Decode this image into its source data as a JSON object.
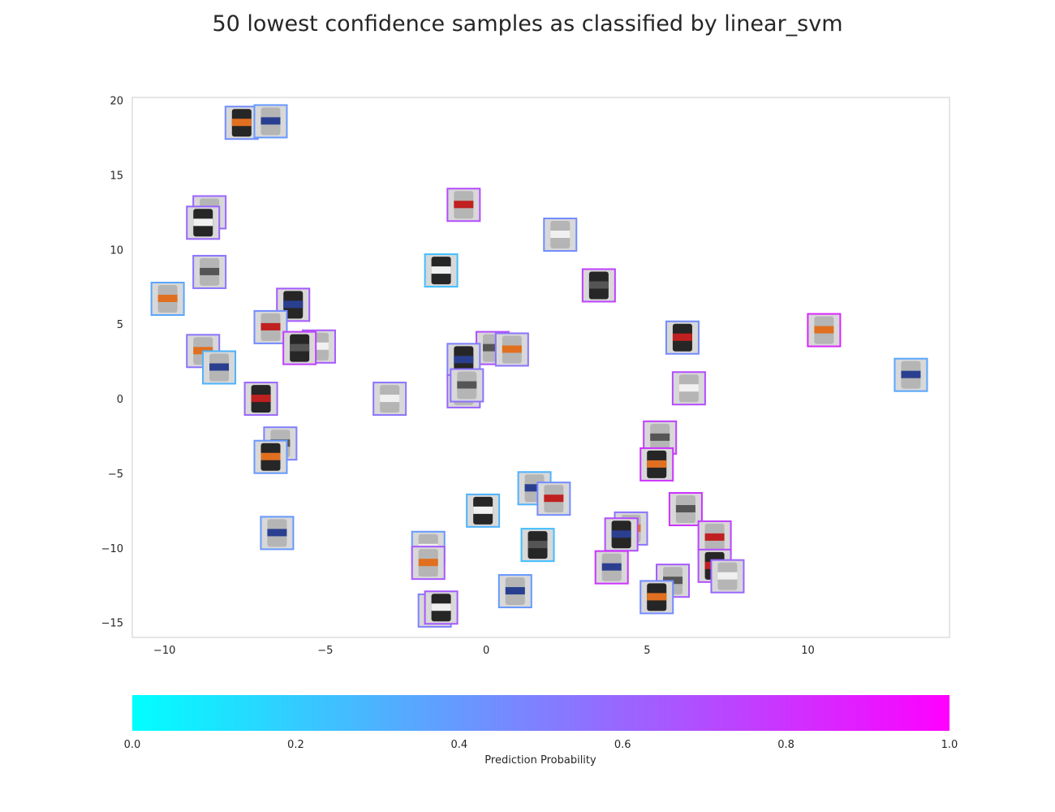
{
  "chart_data": {
    "type": "scatter",
    "title": "50 lowest confidence samples as classified by linear_svm",
    "xlabel": "",
    "ylabel": "",
    "xlim": [
      -11,
      14.4
    ],
    "ylim": [
      -16,
      20.2
    ],
    "x_ticks": [
      -10,
      -5,
      0,
      5,
      10
    ],
    "y_ticks": [
      -15,
      -10,
      -5,
      0,
      5,
      10,
      15,
      20
    ],
    "grid": false,
    "marker": "image thumbnail with colored border",
    "points": [
      {
        "x": -7.6,
        "y": 18.5,
        "p": 0.45
      },
      {
        "x": -6.7,
        "y": 18.6,
        "p": 0.4
      },
      {
        "x": -8.6,
        "y": 12.5,
        "p": 0.6
      },
      {
        "x": -8.8,
        "y": 11.8,
        "p": 0.6
      },
      {
        "x": -8.6,
        "y": 8.5,
        "p": 0.55
      },
      {
        "x": -9.9,
        "y": 6.7,
        "p": 0.35
      },
      {
        "x": -6.0,
        "y": 6.3,
        "p": 0.65
      },
      {
        "x": -6.7,
        "y": 4.8,
        "p": 0.45
      },
      {
        "x": -5.2,
        "y": 3.5,
        "p": 0.65
      },
      {
        "x": -5.8,
        "y": 3.4,
        "p": 0.75
      },
      {
        "x": -8.8,
        "y": 3.2,
        "p": 0.55
      },
      {
        "x": -8.3,
        "y": 2.1,
        "p": 0.3
      },
      {
        "x": -7.0,
        "y": 0.0,
        "p": 0.6
      },
      {
        "x": -3.0,
        "y": 0.0,
        "p": 0.55
      },
      {
        "x": -6.4,
        "y": -3.0,
        "p": 0.5
      },
      {
        "x": -6.7,
        "y": -3.9,
        "p": 0.4
      },
      {
        "x": -6.5,
        "y": -9.0,
        "p": 0.4
      },
      {
        "x": -0.7,
        "y": 13.0,
        "p": 0.7
      },
      {
        "x": -1.4,
        "y": 8.6,
        "p": 0.25
      },
      {
        "x": 0.2,
        "y": 3.4,
        "p": 0.7
      },
      {
        "x": 0.8,
        "y": 3.3,
        "p": 0.55
      },
      {
        "x": -0.7,
        "y": 2.6,
        "p": 0.5
      },
      {
        "x": -0.7,
        "y": 0.5,
        "p": 0.6
      },
      {
        "x": 2.3,
        "y": 11.0,
        "p": 0.45
      },
      {
        "x": 3.5,
        "y": 7.6,
        "p": 0.75
      },
      {
        "x": 10.5,
        "y": 4.6,
        "p": 0.85
      },
      {
        "x": 13.2,
        "y": 1.6,
        "p": 0.35
      },
      {
        "x": 6.1,
        "y": 4.1,
        "p": 0.45
      },
      {
        "x": 6.3,
        "y": 0.7,
        "p": 0.7
      },
      {
        "x": 5.4,
        "y": -2.6,
        "p": 0.75
      },
      {
        "x": 5.3,
        "y": -4.4,
        "p": 0.8
      },
      {
        "x": 1.5,
        "y": -6.0,
        "p": 0.3
      },
      {
        "x": 2.1,
        "y": -6.7,
        "p": 0.45
      },
      {
        "x": -0.1,
        "y": -7.5,
        "p": 0.3
      },
      {
        "x": 6.2,
        "y": -7.4,
        "p": 0.8
      },
      {
        "x": 4.5,
        "y": -8.7,
        "p": 0.55
      },
      {
        "x": 4.2,
        "y": -9.1,
        "p": 0.7
      },
      {
        "x": 7.1,
        "y": -9.3,
        "p": 0.75
      },
      {
        "x": -1.8,
        "y": -10.0,
        "p": 0.4
      },
      {
        "x": 1.6,
        "y": -9.8,
        "p": 0.25
      },
      {
        "x": -1.8,
        "y": -11.0,
        "p": 0.65
      },
      {
        "x": 3.9,
        "y": -11.3,
        "p": 0.8
      },
      {
        "x": 7.1,
        "y": -11.2,
        "p": 0.7
      },
      {
        "x": 7.5,
        "y": -11.9,
        "p": 0.6
      },
      {
        "x": 5.8,
        "y": -12.2,
        "p": 0.65
      },
      {
        "x": 5.3,
        "y": -13.3,
        "p": 0.45
      },
      {
        "x": 0.9,
        "y": -12.9,
        "p": 0.4
      },
      {
        "x": -1.6,
        "y": -14.2,
        "p": 0.5
      },
      {
        "x": -1.4,
        "y": -14.0,
        "p": 0.65
      },
      {
        "x": -0.6,
        "y": 0.9,
        "p": 0.55
      }
    ],
    "colorbar": {
      "label": "Prediction Probability",
      "range": [
        0.0,
        1.0
      ],
      "tick_labels": [
        "0.0",
        "0.2",
        "0.4",
        "0.6",
        "0.8",
        "1.0"
      ],
      "colormap": "cool",
      "color_low": "#00ffff",
      "color_high": "#ff00ff"
    }
  }
}
